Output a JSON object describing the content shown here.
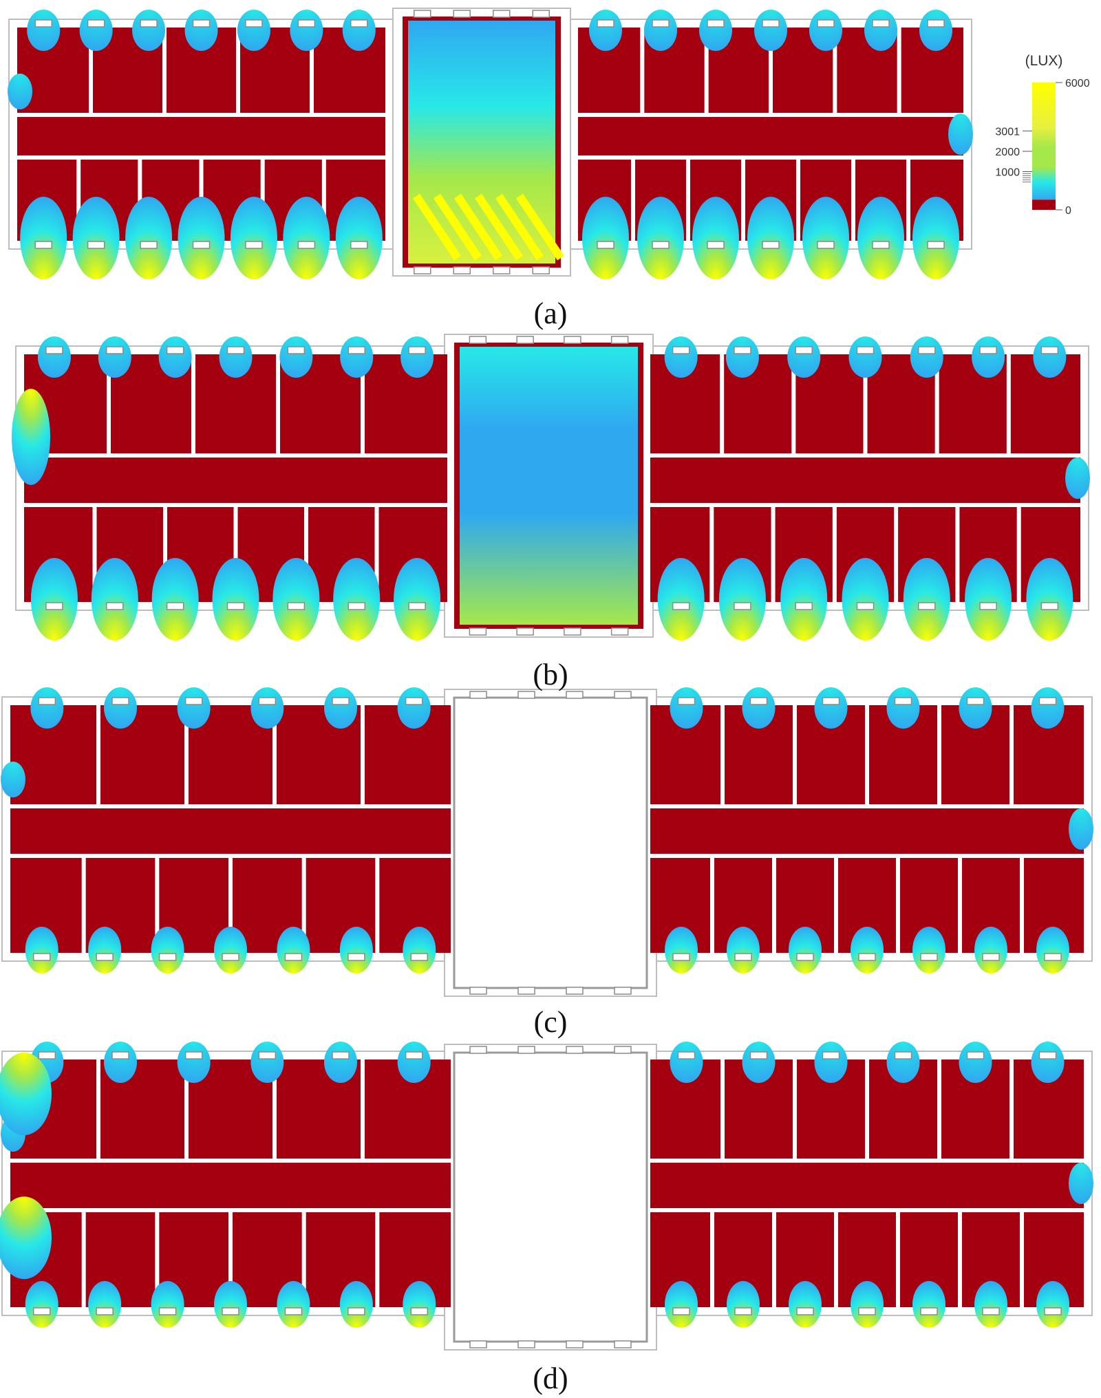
{
  "legend": {
    "title": "(LUX)",
    "ticks": [
      {
        "label": "6000",
        "value": 6000
      },
      {
        "label": "3001",
        "value": 3001
      },
      {
        "label": "2000",
        "value": 2000
      },
      {
        "label": "1000",
        "value": 1000
      },
      {
        "label": "0",
        "value": 0
      }
    ],
    "colors": {
      "max": "#ffff00",
      "high": "#a5e84a",
      "mid": "#27e8e8",
      "low": "#2fa8f0",
      "zero": "#a5000f"
    }
  },
  "panels": [
    {
      "label": "(a)",
      "central_hall_shown": true,
      "central_hall_level": "high"
    },
    {
      "label": "(b)",
      "central_hall_shown": true,
      "central_hall_level": "medium"
    },
    {
      "label": "(c)",
      "central_hall_shown": false
    },
    {
      "label": "(d)",
      "central_hall_shown": false
    }
  ],
  "palette": {
    "dark": "#a5000f",
    "wall": "#ffffff",
    "wall_outline": "#bdbdbd",
    "yellow": "#ffff00",
    "green": "#a5e84a",
    "cyan": "#27e8e8",
    "blue": "#2fa8f0"
  }
}
